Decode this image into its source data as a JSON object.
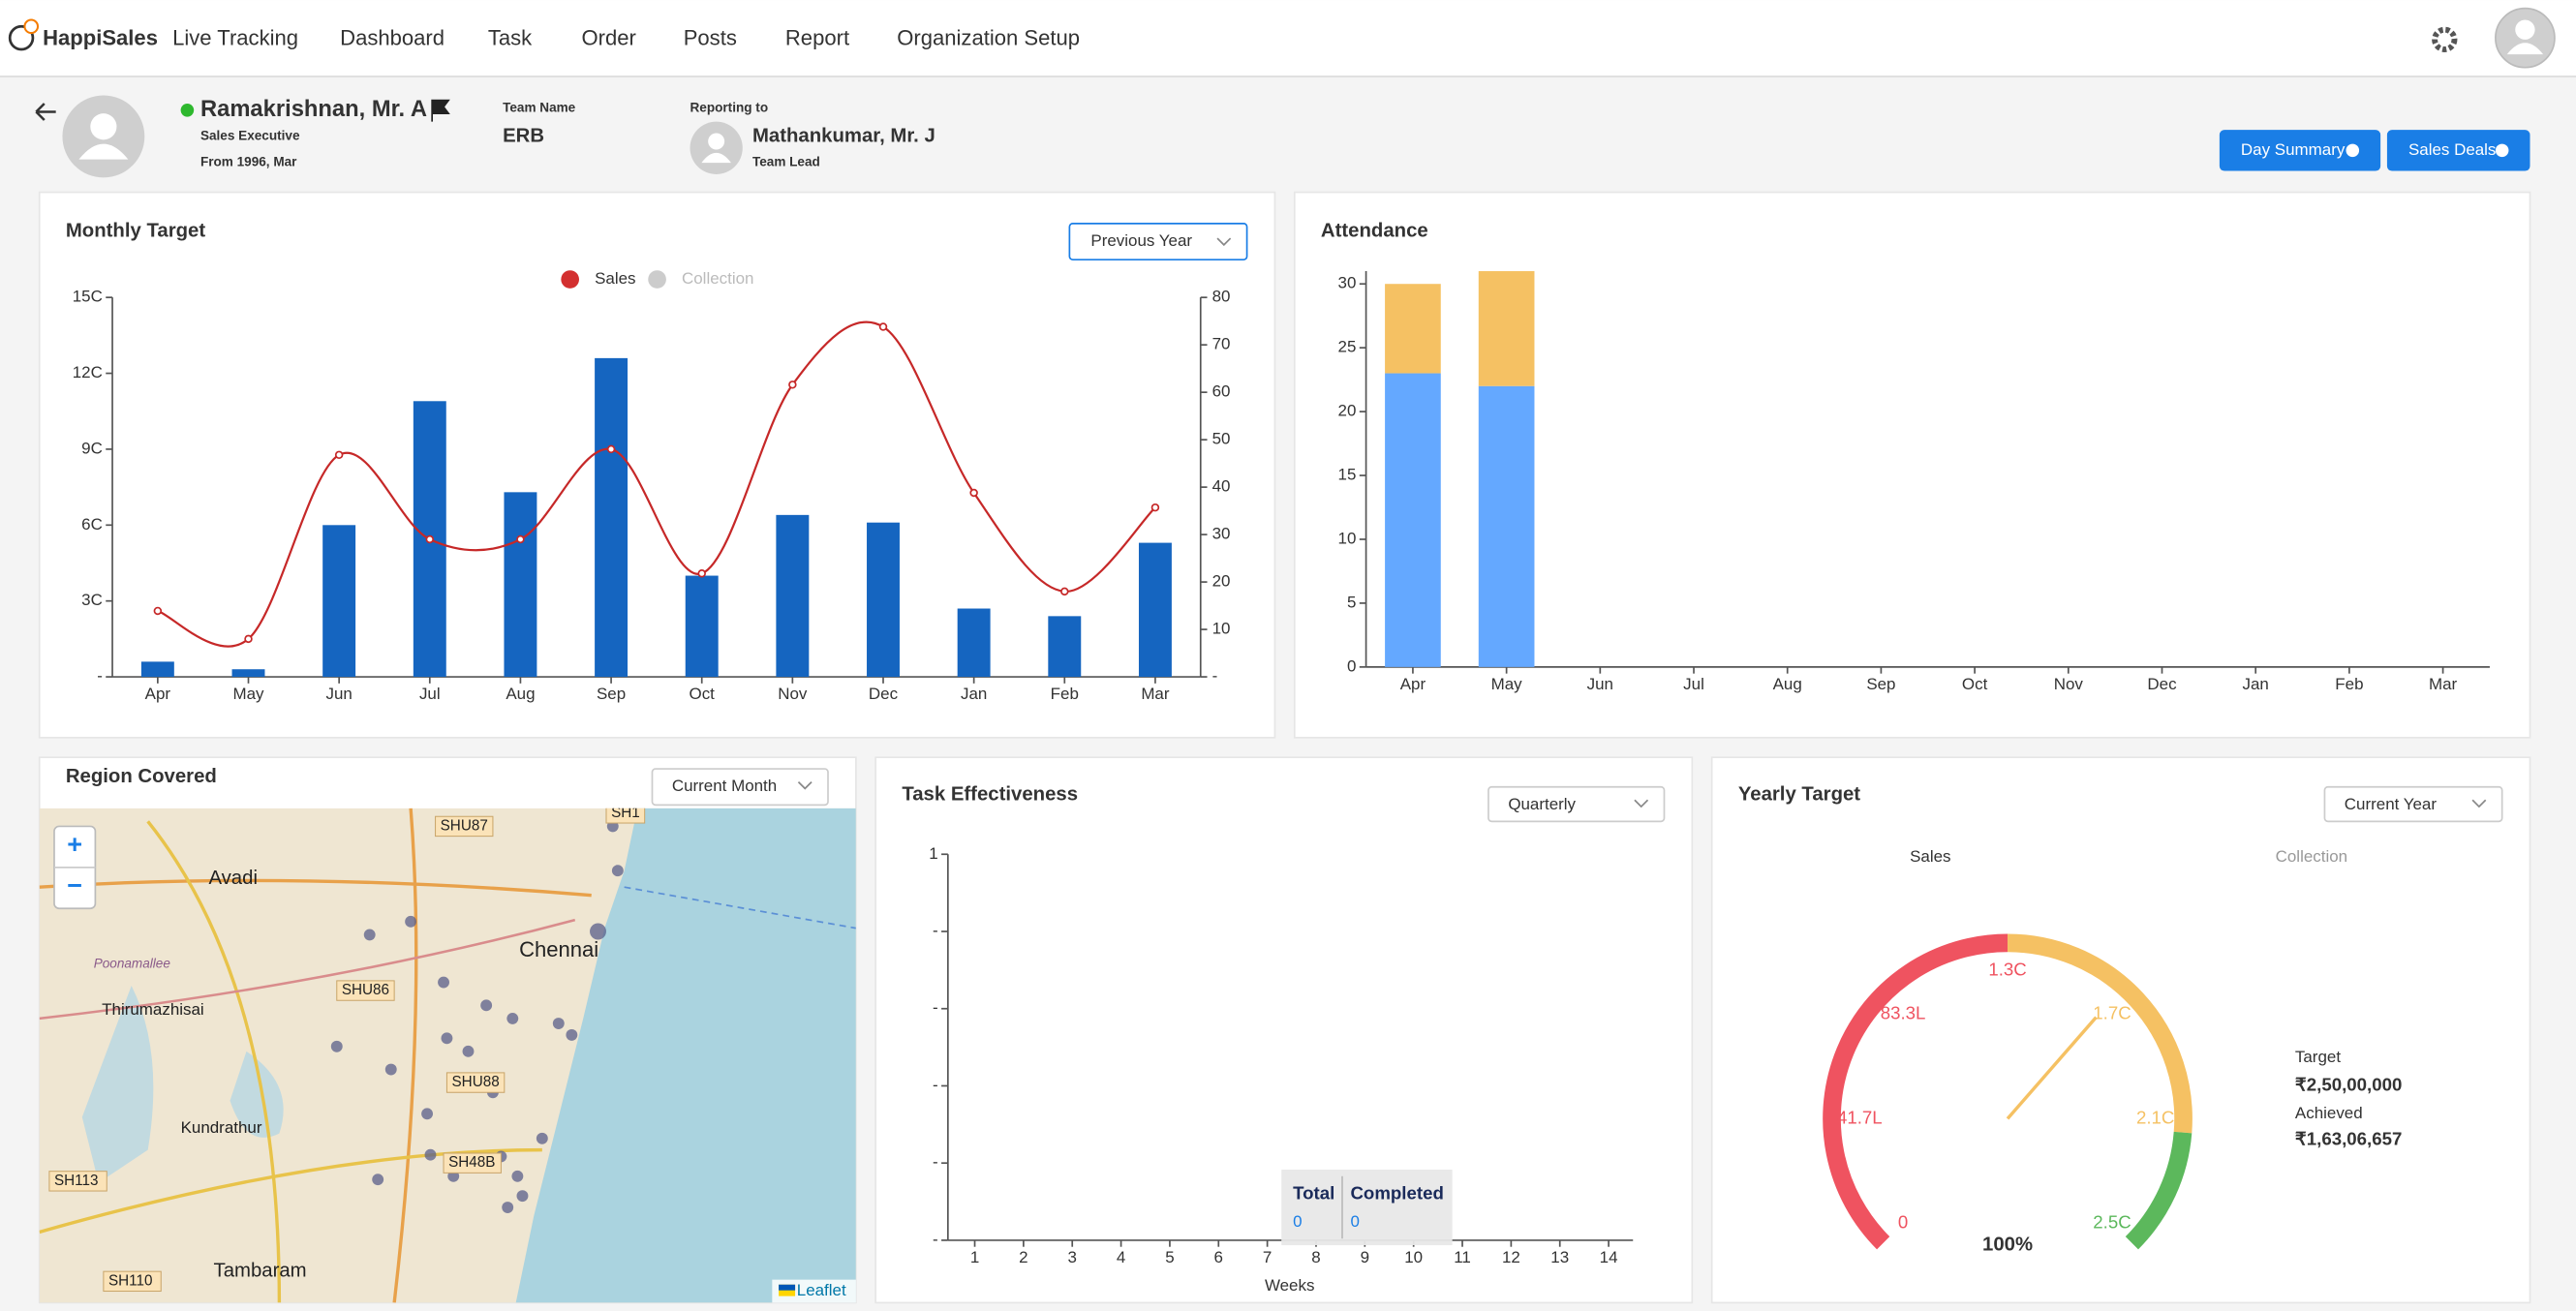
{
  "nav": {
    "brand": "HappiSales",
    "items": [
      "Live Tracking",
      "Dashboard",
      "Task",
      "Order",
      "Posts",
      "Report",
      "Organization Setup"
    ]
  },
  "profile": {
    "name": "Ramakrishnan, Mr. A",
    "role": "Sales Executive",
    "since": "From 1996, Mar",
    "team_label": "Team Name",
    "team": "ERB",
    "reporting_label": "Reporting to",
    "manager": "Mathankumar, Mr. J",
    "manager_role": "Team Lead"
  },
  "buttons": [
    "Day Summary",
    "Sales Deals"
  ],
  "region": {
    "title": "Region Covered",
    "filter": "Current Month",
    "zoom_in": "+",
    "zoom_out": "−",
    "attribution": "Leaflet",
    "map_labels": [
      "Avadi",
      "Chennai",
      "Thirumazhisai",
      "Kundrathur",
      "Tambaram",
      "Poonamallee",
      "SHU87",
      "SHU86",
      "SHU88",
      "SH48B",
      "SH113",
      "SH110",
      "SH1"
    ]
  },
  "chart_data": [
    {
      "type": "bar",
      "title": "Monthly Target",
      "filter": "Previous Year",
      "legend": [
        {
          "name": "Sales",
          "color": "#d32f2f"
        },
        {
          "name": "Collection",
          "color": "#cccccc"
        }
      ],
      "categories": [
        "Apr",
        "May",
        "Jun",
        "Jul",
        "Aug",
        "Sep",
        "Oct",
        "Nov",
        "Dec",
        "Jan",
        "Feb",
        "Mar"
      ],
      "series": [
        {
          "type": "bar",
          "color": "#1565c0",
          "values": [
            0.6,
            0.3,
            6.0,
            10.9,
            7.3,
            12.6,
            4.0,
            6.4,
            6.1,
            2.7,
            2.4,
            5.3
          ]
        },
        {
          "type": "line",
          "axis": "y2",
          "color": "#c62828",
          "values": [
            13.9,
            8,
            46.8,
            29,
            29,
            48,
            21.8,
            61.6,
            73.8,
            38.8,
            18,
            35.7
          ]
        }
      ],
      "ylim": [
        0,
        15
      ],
      "yticks": [
        {
          "value": 0,
          "label": "-"
        },
        {
          "value": 3,
          "label": "3C"
        },
        {
          "value": 6,
          "label": "6C"
        },
        {
          "value": 9,
          "label": "9C"
        },
        {
          "value": 12,
          "label": "12C"
        },
        {
          "value": 15,
          "label": "15C"
        }
      ],
      "y2lim": [
        0,
        80
      ],
      "y2ticks": [
        {
          "value": 0,
          "label": "-"
        },
        10,
        20,
        30,
        40,
        50,
        60,
        70,
        80
      ]
    },
    {
      "type": "stacked_bar",
      "title": "Attendance",
      "categories": [
        "Apr",
        "May",
        "Jun",
        "Jul",
        "Aug",
        "Sep",
        "Oct",
        "Nov",
        "Dec",
        "Jan",
        "Feb",
        "Mar"
      ],
      "series": [
        {
          "color": "#64a8ff",
          "values": [
            23,
            22,
            null,
            null,
            null,
            null,
            null,
            null,
            null,
            null,
            null,
            null
          ]
        },
        {
          "color": "#f5c163",
          "values": [
            7,
            9,
            null,
            null,
            null,
            null,
            null,
            null,
            null,
            null,
            null,
            null
          ]
        }
      ],
      "ylim": [
        0,
        31
      ],
      "yticks": [
        0,
        5,
        10,
        15,
        20,
        25,
        30
      ]
    },
    {
      "type": "line",
      "title": "Task Effectiveness",
      "filter": "Quarterly",
      "xlabel": "Weeks",
      "xlim": [
        0.45,
        14.5
      ],
      "xticks": [
        1,
        2,
        3,
        4,
        5,
        6,
        7,
        8,
        9,
        10,
        11,
        12,
        13,
        14
      ],
      "ylim": [
        0,
        1
      ],
      "yticks": [
        {
          "value": 0,
          "label": "-"
        },
        {
          "value": 0.2,
          "label": "-"
        },
        {
          "value": 0.4,
          "label": "-"
        },
        {
          "value": 0.6,
          "label": "-"
        },
        {
          "value": 0.8,
          "label": "-"
        },
        1
      ],
      "tooltip": {
        "labels": [
          "Total",
          "Completed"
        ],
        "values": [
          0,
          0
        ]
      }
    },
    {
      "type": "gauge",
      "title": "Yearly Target",
      "filter": "Current Year",
      "tabs": [
        "Sales",
        "Collection"
      ],
      "range": [
        0,
        25000000
      ],
      "ticks": [
        {
          "value": 0,
          "label": "0"
        },
        {
          "value": 4166667,
          "label": "41.7L"
        },
        {
          "value": 8333333,
          "label": "83.3L"
        },
        {
          "value": 12500000,
          "label": "1.3C"
        },
        {
          "value": 16666667,
          "label": "1.7C"
        },
        {
          "value": 20833333,
          "label": "2.1C"
        },
        {
          "value": 25000000,
          "label": "2.5C"
        }
      ],
      "bands": [
        {
          "from": 0,
          "to": 12500000,
          "color": "#ef5360"
        },
        {
          "from": 12500000,
          "to": 21250000,
          "color": "#f5c163"
        },
        {
          "from": 21250000,
          "to": 25000000,
          "color": "#5cb85c"
        }
      ],
      "center_label": "100%",
      "target_label": "Target",
      "target": {
        "value": 25000000,
        "label": "₹2,50,00,000"
      },
      "achieved_label": "Achieved",
      "achieved": {
        "value": 16306657,
        "label": "₹1,63,06,657"
      }
    }
  ]
}
